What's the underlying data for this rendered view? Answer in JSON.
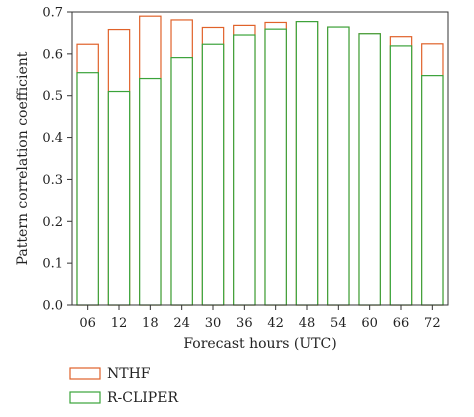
{
  "chart_data": {
    "type": "bar",
    "title": "",
    "xlabel": "Forecast hours (UTC)",
    "ylabel": "Pattern correlation coefficient",
    "categories": [
      "06",
      "12",
      "18",
      "24",
      "30",
      "36",
      "42",
      "48",
      "54",
      "60",
      "66",
      "72"
    ],
    "ylim": [
      0,
      0.7
    ],
    "yticks": [
      "0.0",
      "0.1",
      "0.2",
      "0.3",
      "0.4",
      "0.5",
      "0.6",
      "0.7"
    ],
    "grid": false,
    "legend_position": "bottom-left",
    "series": [
      {
        "name": "NTHF",
        "color": "#e0622a",
        "values": [
          0.623,
          0.658,
          0.69,
          0.681,
          0.663,
          0.668,
          0.675,
          0.677,
          0.664,
          0.648,
          0.641,
          0.624
        ]
      },
      {
        "name": "R-CLIPER",
        "color": "#3aa33a",
        "values": [
          0.555,
          0.51,
          0.541,
          0.591,
          0.623,
          0.645,
          0.659,
          0.677,
          0.664,
          0.648,
          0.619,
          0.548
        ]
      }
    ]
  }
}
